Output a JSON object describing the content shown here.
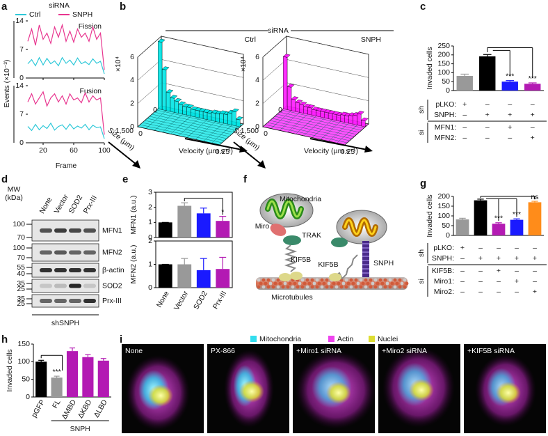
{
  "figure": {
    "a": {
      "label": "a",
      "title": "siRNA",
      "legend": [
        {
          "name": "Ctrl",
          "color": "#2ec8d8"
        },
        {
          "name": "SNPH",
          "color": "#e8358f"
        }
      ],
      "ylabel": "Events (×10⁻³)",
      "xlabel": "Frame",
      "xlim": [
        0,
        100
      ],
      "xticks": [
        20,
        60,
        100
      ],
      "ylim": [
        0,
        14
      ],
      "yticks": [
        0,
        7,
        14
      ],
      "x": [
        0,
        5,
        10,
        15,
        20,
        25,
        30,
        35,
        40,
        45,
        50,
        55,
        60,
        65,
        70,
        75,
        80,
        85,
        90,
        95,
        100
      ],
      "plots": [
        {
          "title": "Fission",
          "values": [
            [
              3.5,
              4.5,
              3,
              5,
              3.2,
              4.8,
              3.5,
              4.2,
              3,
              5,
              3.6,
              4.4,
              3.2,
              4.9,
              3.5,
              4,
              3.3,
              4.7,
              3.6,
              4.1,
              1
            ],
            [
              9,
              12,
              8,
              13,
              9.5,
              11,
              8.5,
              12.5,
              10,
              13,
              9,
              11.5,
              8.8,
              12,
              10,
              11,
              9,
              12.5,
              9.5,
              11,
              2
            ]
          ]
        },
        {
          "title": "Fusion",
          "values": [
            [
              4,
              3,
              4.5,
              3.2,
              4.2,
              3.5,
              4.8,
              3.1,
              4,
              4.4,
              3.3,
              4.6,
              3.4,
              4.1,
              3.6,
              4.5,
              3.2,
              4.3,
              3.7,
              3.9,
              1
            ],
            [
              10,
              12,
              9.5,
              11,
              12.5,
              9,
              11,
              12,
              10,
              11.5,
              9.5,
              12,
              10.5,
              11,
              9.8,
              12.2,
              10,
              11.5,
              10.5,
              11,
              2
            ]
          ]
        }
      ]
    },
    "b": {
      "label": "b",
      "title": "siRNA",
      "zlabel": "×10⁴",
      "zlim": [
        0,
        6
      ],
      "zticks": [
        0,
        2,
        4,
        6
      ],
      "size_label": "Size (µm)",
      "size_lim": [
        0,
        1500
      ],
      "size_ticks": [
        0,
        {
          "value": 1500,
          "label": "1,500"
        }
      ],
      "velocity_label": "Velocity (µm s⁻¹)",
      "velocity_lim": [
        0,
        0.25
      ],
      "velocity_ticks": [
        0,
        0.25
      ],
      "plots": [
        {
          "title": "Ctrl",
          "color": "#00e6e6",
          "values": [
            5.8,
            3.5,
            1.6,
            1.2,
            1,
            0.8,
            0.7,
            0.7,
            0.6,
            0.6,
            0.6,
            0.6,
            0.6,
            0.7,
            0.7,
            0.8,
            0.8,
            1.0,
            1.2,
            0.6
          ]
        },
        {
          "title": "SNPH",
          "color": "#ff1aff",
          "values": [
            4.5,
            2.0,
            1.0,
            0.8,
            0.7,
            0.6,
            0.6,
            0.5,
            0.5,
            0.5,
            0.5,
            0.5,
            0.5,
            0.5,
            0.6,
            0.6,
            0.7,
            0.8,
            1.0,
            0.5
          ]
        }
      ]
    },
    "c": {
      "label": "c",
      "ylabel": "Invaded cells",
      "ylim": [
        0,
        250
      ],
      "yticks": [
        0,
        50,
        100,
        150,
        200,
        250
      ],
      "values": [
        82,
        192,
        50,
        38
      ],
      "errors": [
        10,
        10,
        6,
        5
      ],
      "colors": [
        "#999999",
        "#000000",
        "#1a1aff",
        "#b31ab3"
      ],
      "value_annotations": [
        null,
        null,
        "***",
        "***"
      ],
      "table": [
        {
          "group": "sh",
          "rows": [
            {
              "label": "pLKO:",
              "cells": [
                "+",
                "–",
                "–",
                "–"
              ]
            },
            {
              "label": "SNPH:",
              "cells": [
                "–",
                "+",
                "+",
                "+"
              ]
            }
          ]
        },
        {
          "group": "si",
          "rows": [
            {
              "label": "MFN1:",
              "cells": [
                "–",
                "–",
                "+",
                "–"
              ]
            },
            {
              "label": "MFN2:",
              "cells": [
                "–",
                "–",
                "–",
                "+"
              ]
            }
          ]
        }
      ]
    },
    "d": {
      "label": "d",
      "mw_label": [
        "MW",
        "(kDa)"
      ],
      "lanes": [
        "None",
        "Vector",
        "SOD2",
        "Prx-III"
      ],
      "rows": [
        {
          "label": "MFN1",
          "mw": [
            100,
            70
          ]
        },
        {
          "label": "MFN2",
          "mw": [
            100,
            70
          ]
        },
        {
          "label": "β-actin",
          "mw": [
            55,
            40
          ]
        },
        {
          "label": "SOD2",
          "mw": [
            35,
            25
          ]
        },
        {
          "label": "Prx-III",
          "mw": [
            35,
            25
          ]
        }
      ],
      "group": "shSNPH"
    },
    "e": {
      "label": "e",
      "categories": [
        "None",
        "Vector",
        "SOD2",
        "Prx-III"
      ],
      "charts": [
        {
          "ylabel": "MFN1 (a.u.)",
          "ylim": [
            0,
            3
          ],
          "yticks": [
            0,
            1,
            2,
            3
          ],
          "values": [
            1,
            2.1,
            1.6,
            1.1
          ],
          "errors": [
            0,
            0.2,
            0.35,
            0.3
          ],
          "colors": [
            "#000000",
            "#999999",
            "#1a1aff",
            "#b31ab3"
          ],
          "value_annotations": [
            null,
            null,
            null,
            "*"
          ]
        },
        {
          "ylabel": "MFN2 (a.u.)",
          "ylim": [
            0,
            2
          ],
          "yticks": [
            0,
            1,
            2
          ],
          "values": [
            1,
            1.0,
            0.75,
            0.8
          ],
          "errors": [
            0,
            0.25,
            0.5,
            0.5
          ],
          "colors": [
            "#000000",
            "#999999",
            "#1a1aff",
            "#b31ab3"
          ]
        }
      ]
    },
    "f": {
      "label": "f",
      "labels": {
        "mitochondria": "Mitochondria",
        "miro": "Miro",
        "trak": "TRAK",
        "kif5b_left": "KIF5B",
        "kif5b_right": "KIF5B",
        "snph": "SNPH",
        "microtubules": "Microtubules"
      }
    },
    "g": {
      "label": "g",
      "ylabel": "Invaded cells",
      "ylim": [
        0,
        200
      ],
      "yticks": [
        0,
        50,
        100,
        150,
        200
      ],
      "values": [
        82,
        180,
        60,
        80,
        170
      ],
      "errors": [
        6,
        6,
        5,
        5,
        5
      ],
      "colors": [
        "#999999",
        "#000000",
        "#b31ab3",
        "#1a1aff",
        "#ff8c1a"
      ],
      "value_annotations": [
        null,
        null,
        "***",
        "***",
        "ns"
      ],
      "table": [
        {
          "group": "sh",
          "rows": [
            {
              "label": "pLKO:",
              "cells": [
                "+",
                "–",
                "–",
                "–",
                "–"
              ]
            },
            {
              "label": "SNPH:",
              "cells": [
                "–",
                "+",
                "+",
                "+",
                "+"
              ]
            }
          ]
        },
        {
          "group": "si",
          "rows": [
            {
              "label": "KIF5B:",
              "cells": [
                "–",
                "–",
                "+",
                "–",
                "–"
              ]
            },
            {
              "label": "Miro1:",
              "cells": [
                "–",
                "–",
                "–",
                "+",
                "–"
              ]
            },
            {
              "label": "Miro2:",
              "cells": [
                "–",
                "–",
                "–",
                "–",
                "+"
              ]
            }
          ]
        }
      ]
    },
    "h": {
      "label": "h",
      "ylabel": "Invaded cells",
      "ylim": [
        0,
        150
      ],
      "yticks": [
        0,
        50,
        100,
        150
      ],
      "categories": [
        "pGFP",
        "FL",
        "ΔMBD",
        "ΔKBD",
        "ΔLBD"
      ],
      "values": [
        100,
        55,
        130,
        113,
        103
      ],
      "errors": [
        4,
        4,
        9,
        7,
        6
      ],
      "colors": [
        "#000000",
        "#999999",
        "#b31ab3",
        "#b31ab3",
        "#b31ab3"
      ],
      "value_annotations": [
        null,
        "***",
        null,
        null,
        null
      ],
      "group": "SNPH"
    },
    "i": {
      "label": "i",
      "legend": [
        {
          "name": "Mitochondria",
          "color": "#33ddee"
        },
        {
          "name": "Actin",
          "color": "#ee44ee"
        },
        {
          "name": "Nuclei",
          "color": "#dddd33"
        }
      ],
      "images": [
        "None",
        "PX-866",
        "+Miro1 siRNA",
        "+Miro2 siRNA",
        "+KIF5B siRNA"
      ]
    }
  }
}
